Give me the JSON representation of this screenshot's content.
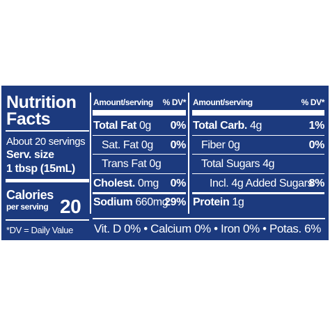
{
  "title": "Nutrition Facts",
  "servings": "About 20 servings",
  "serving_size_label": "Serv. size",
  "serving_size": "1 tbsp (15mL)",
  "calories": {
    "label": "Calories",
    "sub": "per serving",
    "value": "20"
  },
  "dv_note": "*DV = Daily Value",
  "left_table": {
    "header": [
      "Amount/serving",
      "% DV*"
    ],
    "rows": [
      {
        "name": "Total Fat",
        "amount": "0g",
        "dv": "0%"
      },
      {
        "name": "Sat. Fat",
        "amount": "0g",
        "dv": "0%"
      },
      {
        "name": "Trans Fat",
        "amount": "0g"
      },
      {
        "name": "Cholest.",
        "amount": "0mg",
        "dv": "0%"
      },
      {
        "name": "Sodium",
        "amount": "660mg",
        "dv": "29%"
      }
    ]
  },
  "right_table": {
    "header": [
      "Amount/serving",
      "% DV*"
    ],
    "rows": [
      {
        "name": "Total Carb.",
        "amount": "4g",
        "dv": "1%"
      },
      {
        "name": "Fiber",
        "amount": "0g",
        "dv": "0%"
      },
      {
        "name": "Total Sugars",
        "amount": "4g"
      },
      {
        "name": "Incl. 4g Added Sugars",
        "dv": "8%"
      },
      {
        "name": "Protein",
        "amount": "1g"
      }
    ]
  },
  "vitamins": "Vit. D 0% • Calcium 0% • Iron 0% • Potas. 6%"
}
